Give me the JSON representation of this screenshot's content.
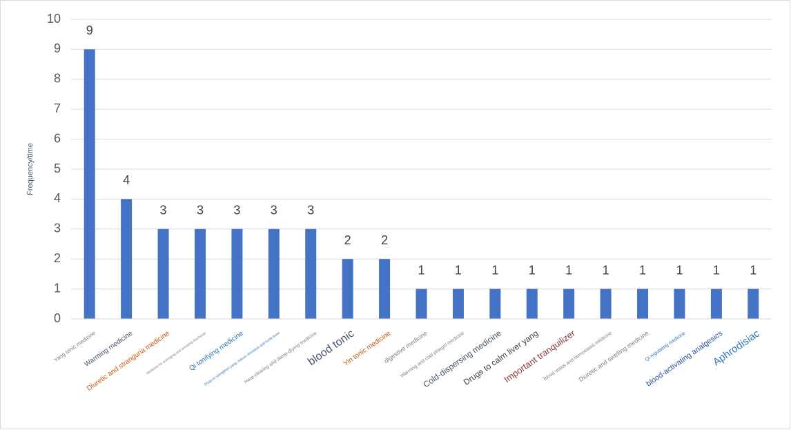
{
  "chart_data": {
    "type": "bar",
    "y_label": "Frequency/time",
    "categories": [
      "Yang tonic medicine",
      "Warming medicine",
      "Diuretic and stranguria medicine",
      "Medicine for astringing and arresting discharge",
      "Qi tonifying medicine",
      "Drugs to strengthen yang, induce ulceration and tonify bone",
      "Heat-clearing and damp-drying medicine",
      "blood tonic",
      "Yin tonic medicine",
      "digestive medicine",
      "Warming and cold phlegm medicine",
      "Cold-dispersing medicine",
      "Drugs to calm liver yang",
      "Important tranquilizer",
      "Blood stasis and hemostasis medicine",
      "Diuretic and swelling medicine",
      "Qi regulating medicine",
      "blood-activating analgesics",
      "Aphrodisiac"
    ],
    "values": [
      9,
      4,
      3,
      3,
      3,
      3,
      3,
      2,
      2,
      1,
      1,
      1,
      1,
      1,
      1,
      1,
      1,
      1,
      1
    ],
    "color": "#4472c4",
    "ylim": [
      0,
      10
    ],
    "yticks": [
      0,
      1,
      2,
      3,
      4,
      5,
      6,
      7,
      8,
      9,
      10
    ],
    "grid": true
  }
}
